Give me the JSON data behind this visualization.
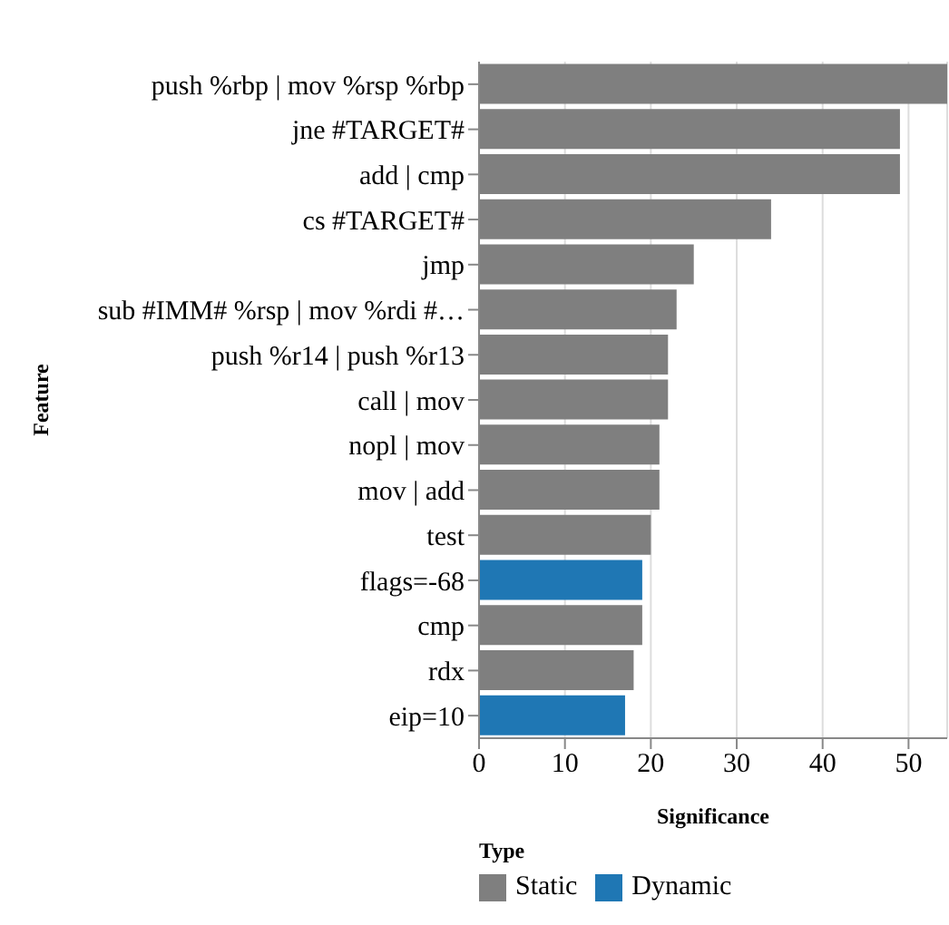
{
  "chart_data": {
    "type": "bar",
    "orientation": "horizontal",
    "stacked": true,
    "xlabel": "Significance",
    "ylabel": "Feature",
    "legend_title": "Type",
    "legend": "bottom left",
    "grid": "x",
    "categories": [
      "push %rbp | mov %rsp %rbp",
      "jne #TARGET#",
      "add | cmp",
      "cs #TARGET#",
      "jmp",
      "sub #IMM# %rsp | mov %rdi #…",
      "push %r14 | push %r13",
      "call | mov",
      "nopl | mov",
      "mov | add",
      "test",
      "flags=-68",
      "cmp",
      "rdx",
      "eip=10"
    ],
    "series": [
      {
        "name": "Static",
        "color": "#7f7f7f",
        "values": [
          54.5,
          49,
          49,
          34,
          25,
          23,
          22,
          22,
          21,
          21,
          20,
          null,
          19,
          18,
          null
        ]
      },
      {
        "name": "Dynamic",
        "color": "#1f77b4",
        "values": [
          null,
          null,
          null,
          null,
          null,
          null,
          null,
          null,
          null,
          null,
          null,
          19,
          null,
          null,
          17
        ]
      }
    ],
    "xlim": [
      0,
      54.5
    ],
    "xticks": [
      0,
      10,
      20,
      30,
      40,
      50
    ]
  }
}
